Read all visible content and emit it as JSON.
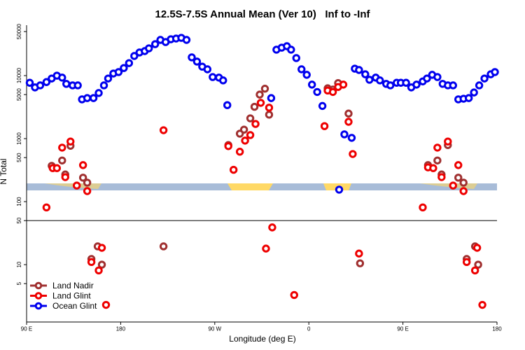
{
  "chart_data": {
    "type": "scatter",
    "title": "12.5S-7.5S Annual Mean (Ver 10)   Inf to -Inf",
    "x_label": "Longitude (deg E)",
    "y_label": "N Total",
    "log_y": true,
    "legend": "bottom-left",
    "xlim": [
      90,
      540
    ],
    "xticks": [
      {
        "value": 90,
        "label": "90 E"
      },
      180,
      {
        "value": 270,
        "label": "90 W"
      },
      {
        "value": 360,
        "label": "0"
      },
      {
        "value": 450,
        "label": "90 E"
      },
      {
        "value": 540,
        "label": "180"
      }
    ],
    "ylim": [
      1.23,
      73600
    ],
    "yticks": [
      5,
      10,
      50,
      100,
      500,
      1000,
      5000,
      10000,
      50000
    ],
    "hlines": [
      50
    ],
    "series": [
      {
        "name": "Land Nadir",
        "color": "#a03030",
        "x": [
          114,
          124,
          127,
          132,
          144,
          148,
          221,
          283,
          294,
          298,
          304,
          308,
          313,
          318,
          322,
          378,
          383,
          388,
          398,
          409,
          474,
          483,
          487,
          493,
          503,
          508,
          152,
          158,
          162,
          511,
          519,
          522
        ],
        "values": [
          370,
          450,
          270,
          770,
          240,
          200,
          19.5,
          790,
          1200,
          1390,
          2100,
          3200,
          5000,
          6200,
          2400,
          6300,
          6000,
          7600,
          2500,
          10.5,
          380,
          450,
          270,
          790,
          240,
          200,
          12.3,
          19.5,
          10,
          12.3,
          19.5,
          10
        ]
      },
      {
        "name": "Land Glint",
        "color": "#ee0000",
        "x": [
          109,
          115,
          119,
          124,
          127,
          132,
          138,
          144,
          148,
          221,
          283,
          288,
          294,
          299,
          304,
          309,
          314,
          322,
          325,
          319,
          346,
          375,
          378,
          383,
          388,
          393,
          398,
          402,
          408,
          469,
          474,
          479,
          483,
          487,
          493,
          498,
          503,
          508,
          152,
          159,
          162,
          166,
          511,
          519,
          521,
          526
        ],
        "values": [
          81,
          340,
          340,
          720,
          245,
          900,
          180,
          380,
          147,
          1360,
          760,
          320,
          620,
          930,
          1140,
          1710,
          3700,
          3100,
          39,
          18,
          3.3,
          1580,
          5800,
          5500,
          6600,
          7200,
          1850,
          570,
          15,
          81,
          350,
          340,
          720,
          245,
          900,
          180,
          380,
          147,
          11,
          8.1,
          18.5,
          2.3,
          11,
          8.1,
          18.5,
          2.3
        ]
      },
      {
        "name": "Ocean Glint",
        "color": "#0000ee",
        "x": [
          93,
          98,
          103,
          109,
          114,
          119,
          124,
          128,
          134,
          139,
          143,
          148,
          154,
          159,
          164,
          168,
          173,
          178,
          183,
          188,
          193,
          198,
          203,
          207,
          213,
          218,
          223,
          228,
          233,
          238,
          243,
          248,
          253,
          258,
          263,
          268,
          274,
          278,
          282,
          324,
          329,
          334,
          339,
          343,
          348,
          353,
          358,
          363,
          368,
          373,
          389,
          394,
          401,
          404,
          408,
          414,
          418,
          424,
          428,
          434,
          438,
          444,
          448,
          453,
          458,
          463,
          469,
          473,
          478,
          483,
          488,
          493,
          498,
          503,
          508,
          513,
          518,
          523,
          528,
          534,
          538
        ],
        "values": [
          7700,
          6500,
          7000,
          7900,
          9000,
          10000,
          9300,
          7400,
          7000,
          7000,
          4200,
          4400,
          4400,
          5300,
          7000,
          9000,
          10800,
          11400,
          13200,
          15800,
          20500,
          23300,
          24500,
          27100,
          31600,
          36900,
          34100,
          37800,
          38800,
          39800,
          36900,
          19500,
          16700,
          13900,
          12600,
          9500,
          9300,
          8400,
          3400,
          4400,
          25800,
          27800,
          29300,
          25800,
          19000,
          12600,
          10300,
          7200,
          5500,
          3300,
          155,
          1170,
          1030,
          12900,
          12300,
          10500,
          8600,
          9300,
          8400,
          7400,
          7000,
          7700,
          7700,
          7700,
          6500,
          7200,
          8100,
          9000,
          10300,
          9500,
          7400,
          7000,
          7000,
          4200,
          4300,
          4400,
          5400,
          7000,
          9000,
          10500,
          11400
        ]
      }
    ]
  }
}
